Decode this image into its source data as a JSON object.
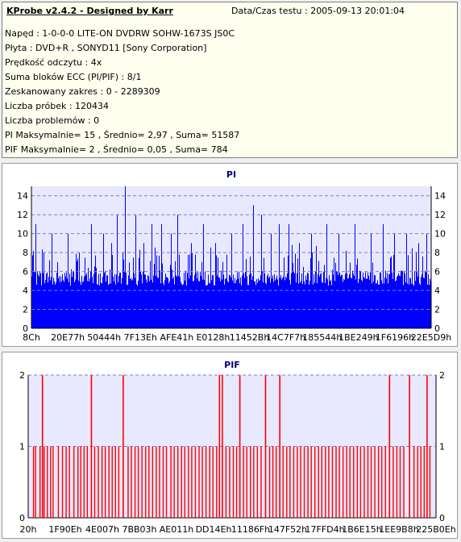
{
  "info": {
    "title": "KProbe v2.4.2 - Designed by Karr",
    "date_label": "Data/Czas testu : 2005-09-13 20:01:04",
    "lines": [
      "Napęd : 1-0-0-0 LITE-ON DVDRW SOHW-1673S JS0C",
      "Płyta : DVD+R , SONYD11 [Sony Corporation]",
      "Prędkość odczytu : 4x",
      "Suma bloków ECC (PI/PIF) : 8/1",
      "Zeskanowany zakres : 0 - 2289309",
      "Liczba próbek : 120434",
      "Liczba problemów : 0",
      "PI Maksymalnie= 15 , Średnio= 2,97 , Suma= 51587",
      "PIF Maksymalnie= 2 , Średnio= 0,05 , Suma= 784"
    ]
  },
  "chart_data": [
    {
      "type": "bar",
      "title": "PI",
      "ylim": [
        0,
        15
      ],
      "yticks": [
        0,
        2,
        4,
        6,
        8,
        10,
        12,
        14
      ],
      "xtick_labels": [
        "8Ch",
        "20E77h",
        "50444h",
        "7F13Eh",
        "AFE41h",
        "E0128h",
        "11452Bh",
        "14C7F7h",
        "185544h",
        "1BE249h",
        "1F6196h",
        "22E5D9h"
      ],
      "x_range": [
        0,
        2289309
      ],
      "grid": true,
      "color": "#0000ff",
      "baseline": 5,
      "max": 15,
      "peaks": [
        {
          "x": 0.01,
          "v": 11
        },
        {
          "x": 0.03,
          "v": 8
        },
        {
          "x": 0.05,
          "v": 10
        },
        {
          "x": 0.09,
          "v": 10
        },
        {
          "x": 0.12,
          "v": 8
        },
        {
          "x": 0.15,
          "v": 11
        },
        {
          "x": 0.18,
          "v": 10
        },
        {
          "x": 0.2,
          "v": 9
        },
        {
          "x": 0.215,
          "v": 12
        },
        {
          "x": 0.235,
          "v": 15
        },
        {
          "x": 0.26,
          "v": 12
        },
        {
          "x": 0.28,
          "v": 9
        },
        {
          "x": 0.3,
          "v": 11
        },
        {
          "x": 0.325,
          "v": 11
        },
        {
          "x": 0.35,
          "v": 10
        },
        {
          "x": 0.365,
          "v": 12
        },
        {
          "x": 0.4,
          "v": 9
        },
        {
          "x": 0.43,
          "v": 11
        },
        {
          "x": 0.46,
          "v": 9
        },
        {
          "x": 0.5,
          "v": 10
        },
        {
          "x": 0.53,
          "v": 11
        },
        {
          "x": 0.555,
          "v": 13
        },
        {
          "x": 0.575,
          "v": 12
        },
        {
          "x": 0.6,
          "v": 10
        },
        {
          "x": 0.62,
          "v": 11
        },
        {
          "x": 0.645,
          "v": 11
        },
        {
          "x": 0.67,
          "v": 9
        },
        {
          "x": 0.7,
          "v": 10
        },
        {
          "x": 0.74,
          "v": 11
        },
        {
          "x": 0.77,
          "v": 10
        },
        {
          "x": 0.81,
          "v": 11
        },
        {
          "x": 0.85,
          "v": 10
        },
        {
          "x": 0.88,
          "v": 11
        },
        {
          "x": 0.91,
          "v": 10
        },
        {
          "x": 0.94,
          "v": 10
        },
        {
          "x": 0.97,
          "v": 9
        },
        {
          "x": 0.99,
          "v": 10
        }
      ]
    },
    {
      "type": "bar",
      "title": "PIF",
      "ylim": [
        0,
        2
      ],
      "yticks": [
        0,
        1,
        2
      ],
      "xtick_labels": [
        "20h",
        "1F90Eh",
        "4E007h",
        "7BB03h",
        "AE011h",
        "DD14Eh",
        "11186Fh",
        "147F52h",
        "17FFD4h",
        "1B6E15h",
        "1EE9B8h",
        "225B0Eh"
      ],
      "x_range": [
        0,
        2289309
      ],
      "grid": true,
      "color": "#ff0000",
      "level2_positions": [
        0.035,
        0.155,
        0.233,
        0.469,
        0.476,
        0.519,
        0.582,
        0.617,
        0.886,
        0.935,
        0.978
      ],
      "level1_positions": [
        0.013,
        0.018,
        0.029,
        0.039,
        0.047,
        0.055,
        0.061,
        0.074,
        0.084,
        0.093,
        0.101,
        0.112,
        0.122,
        0.129,
        0.137,
        0.145,
        0.163,
        0.172,
        0.181,
        0.189,
        0.198,
        0.206,
        0.214,
        0.222,
        0.245,
        0.253,
        0.262,
        0.27,
        0.279,
        0.288,
        0.296,
        0.305,
        0.314,
        0.322,
        0.331,
        0.339,
        0.35,
        0.358,
        0.367,
        0.376,
        0.384,
        0.393,
        0.401,
        0.41,
        0.419,
        0.427,
        0.436,
        0.445,
        0.453,
        0.462,
        0.485,
        0.494,
        0.503,
        0.511,
        0.528,
        0.536,
        0.545,
        0.553,
        0.562,
        0.571,
        0.592,
        0.6,
        0.608,
        0.625,
        0.634,
        0.642,
        0.651,
        0.66,
        0.668,
        0.677,
        0.686,
        0.694,
        0.703,
        0.712,
        0.72,
        0.729,
        0.737,
        0.746,
        0.755,
        0.763,
        0.772,
        0.781,
        0.789,
        0.798,
        0.807,
        0.815,
        0.824,
        0.833,
        0.841,
        0.85,
        0.859,
        0.867,
        0.876,
        0.895,
        0.904,
        0.912,
        0.921,
        0.946,
        0.955,
        0.963,
        0.971,
        0.985
      ]
    }
  ]
}
